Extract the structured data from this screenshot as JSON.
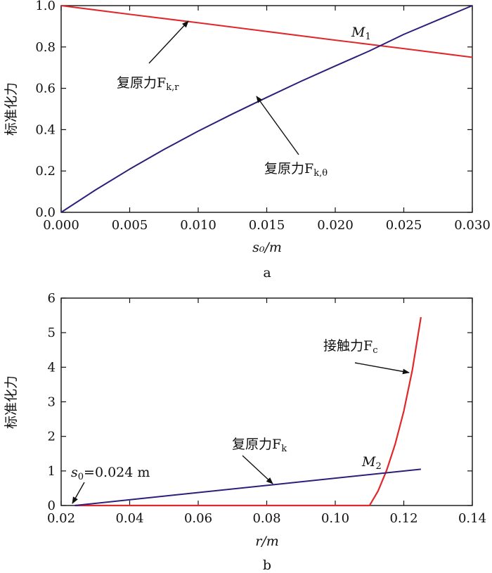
{
  "colors": {
    "red": "#e0282a",
    "blue": "#2b1f7a",
    "ink": "#111111"
  },
  "chart_data": [
    {
      "type": "line",
      "subplot_label": "a",
      "title": "",
      "xlabel": "s₀/m",
      "ylabel": "标准化力",
      "xlim": [
        0,
        0.03
      ],
      "ylim": [
        0,
        1.0
      ],
      "xticks": [
        0,
        0.005,
        0.01,
        0.015,
        0.02,
        0.025,
        0.03
      ],
      "yticks": [
        0,
        0.2,
        0.4,
        0.6,
        0.8,
        1.0
      ],
      "xtick_labels": [
        "0.000",
        "0.005",
        "0.010",
        "0.015",
        "0.020",
        "0.025",
        "0.030"
      ],
      "ytick_labels": [
        "0.0",
        "0.2",
        "0.4",
        "0.6",
        "0.8",
        "1.0"
      ],
      "series": [
        {
          "label_text": "复原力F",
          "label_sub": "k,r",
          "color": "red",
          "x": [
            0,
            0.005,
            0.01,
            0.015,
            0.02,
            0.025,
            0.03
          ],
          "y": [
            1.0,
            0.958,
            0.917,
            0.875,
            0.833,
            0.792,
            0.75
          ]
        },
        {
          "label_text": "复原力F",
          "label_sub": "k,θ",
          "color": "blue",
          "x": [
            0,
            0.0025,
            0.005,
            0.0075,
            0.01,
            0.0125,
            0.015,
            0.0175,
            0.02,
            0.0225,
            0.025,
            0.0275,
            0.03
          ],
          "y": [
            0,
            0.108,
            0.209,
            0.304,
            0.393,
            0.476,
            0.556,
            0.634,
            0.708,
            0.781,
            0.861,
            0.931,
            1.0
          ]
        }
      ],
      "annotations": [
        {
          "text": "M",
          "sub": "1",
          "x": 0.0225,
          "y": 0.815
        }
      ]
    },
    {
      "type": "line",
      "subplot_label": "b",
      "title": "",
      "xlabel": "r/m",
      "ylabel": "标准化力",
      "xlim": [
        0.02,
        0.14
      ],
      "ylim": [
        0,
        6
      ],
      "xticks": [
        0.02,
        0.04,
        0.06,
        0.08,
        0.1,
        0.12,
        0.14
      ],
      "yticks": [
        0,
        1,
        2,
        3,
        4,
        5,
        6
      ],
      "xtick_labels": [
        "0.02",
        "0.04",
        "0.06",
        "0.08",
        "0.10",
        "0.12",
        "0.14"
      ],
      "ytick_labels": [
        "0",
        "1",
        "2",
        "3",
        "4",
        "5",
        "6"
      ],
      "series": [
        {
          "label_text": "复原力F",
          "label_sub": "k",
          "color": "blue",
          "x": [
            0.024,
            0.125
          ],
          "y": [
            0,
            1.05
          ]
        },
        {
          "label_text": "接触力F",
          "label_sub": "c",
          "color": "red",
          "x": [
            0.024,
            0.11,
            0.1125,
            0.115,
            0.1175,
            0.12,
            0.1225,
            0.125
          ],
          "y": [
            0,
            0,
            0.42,
            1.02,
            1.78,
            2.73,
            3.92,
            5.45
          ]
        }
      ],
      "annotations": [
        {
          "text": "M",
          "sub": "2",
          "x": 0.115,
          "y": 0.98
        },
        {
          "text": "s",
          "sub": "0",
          "suffix": "=0.024 m",
          "x": 0.024,
          "y": 0
        }
      ]
    }
  ]
}
